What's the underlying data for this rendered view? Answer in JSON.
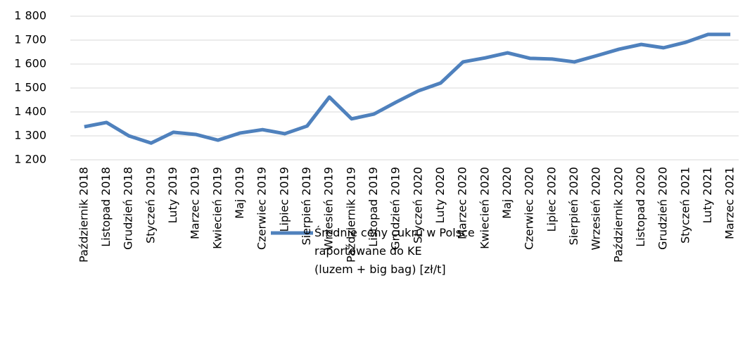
{
  "chart_data": {
    "type": "line",
    "categories": [
      "Październik 2018",
      "Listopad 2018",
      "Grudzień 2018",
      "Styczeń 2019",
      "Luty 2019",
      "Marzec 2019",
      "Kwiecień 2019",
      "Maj 2019",
      "Czerwiec 2019",
      "Lipiec 2019",
      "Sierpień 2019",
      "Wrzesień 2019",
      "Październik 2019",
      "Listopad 2019",
      "Grudzień 2019",
      "Styczeń 2020",
      "Luty 2020",
      "Marzec 2020",
      "Kwiecień 2020",
      "Maj 2020",
      "Czerwiec 2020",
      "Lipiec 2020",
      "Sierpień 2020",
      "Wrzesień 2020",
      "Październik 2020",
      "Listopad 2020",
      "Grudzień 2020",
      "Styczeń 2021",
      "Luty 2021",
      "Marzec 2021"
    ],
    "series": [
      {
        "name": "Średnie ceny cukru w Polsce\nraportowane do KE\n(luzem + big bag) [zł/t]",
        "color": "#4f81bd",
        "values": [
          1338,
          1356,
          1300,
          1270,
          1315,
          1306,
          1282,
          1312,
          1326,
          1309,
          1341,
          1462,
          1371,
          1391,
          1441,
          1488,
          1521,
          1609,
          1626,
          1647,
          1624,
          1621,
          1609,
          1635,
          1662,
          1682,
          1668,
          1691,
          1724,
          1724
        ]
      }
    ],
    "ylim": [
      1200,
      1800
    ],
    "yticks": [
      {
        "value": 1200,
        "label": "1 200"
      },
      {
        "value": 1300,
        "label": "1 300"
      },
      {
        "value": 1400,
        "label": "1 400"
      },
      {
        "value": 1500,
        "label": "1 500"
      },
      {
        "value": 1600,
        "label": "1 600"
      },
      {
        "value": 1700,
        "label": "1 700"
      },
      {
        "value": 1800,
        "label": "1 800"
      }
    ],
    "grid": true,
    "legend": "bottom"
  }
}
